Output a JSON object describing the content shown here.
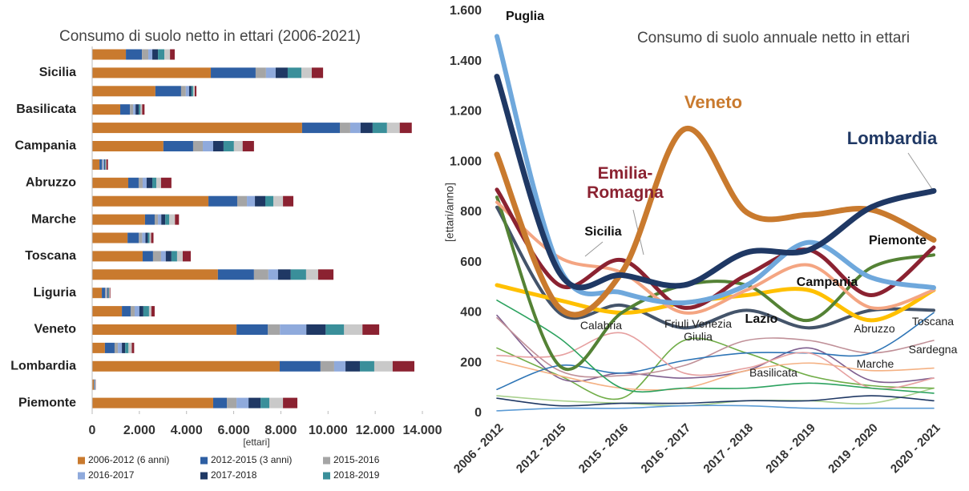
{
  "chart_data": [
    {
      "type": "bar",
      "horizontal": true,
      "title": "Consumo di suolo netto in ettari (2006-2021)",
      "x_label": "[ettari]",
      "categories": [
        null,
        "Sicilia",
        null,
        "Basilicata",
        null,
        "Campania",
        null,
        "Abruzzo",
        null,
        "Marche",
        null,
        "Toscana",
        null,
        "Liguria",
        null,
        "Veneto",
        null,
        "Lombardia",
        null,
        "Piemonte"
      ],
      "xlim": [
        0,
        14000
      ],
      "xticks": [
        0,
        {
          "value": 2000,
          "label": "2.000"
        },
        {
          "value": 4000,
          "label": "4.000"
        },
        {
          "value": 6000,
          "label": "6.000"
        },
        {
          "value": 8000,
          "label": "8.000"
        },
        {
          "value": 10000,
          "label": "10.000"
        },
        {
          "value": 12000,
          "label": "12.000"
        },
        {
          "value": 14000,
          "label": "14.000"
        }
      ],
      "series": [
        {
          "name": "2006-2012 (6 anni)",
          "color": "#c97a2e",
          "values": [
            1430,
            5030,
            2680,
            1190,
            8900,
            3020,
            310,
            1530,
            4930,
            2240,
            1500,
            2140,
            5330,
            410,
            1260,
            6120,
            540,
            7950,
            70,
            5130
          ]
        },
        {
          "name": "2012-2015 (3 anni)",
          "color": "#2e5fa3",
          "values": [
            680,
            1900,
            1090,
            410,
            1600,
            1260,
            100,
            440,
            1220,
            410,
            480,
            440,
            1530,
            140,
            370,
            1330,
            410,
            1730,
            20,
            580
          ]
        },
        {
          "name": "2015-2016",
          "color": "#a5a5a5",
          "values": [
            270,
            440,
            200,
            140,
            440,
            410,
            30,
            170,
            410,
            140,
            140,
            340,
            610,
            70,
            170,
            510,
            140,
            580,
            10,
            410
          ]
        },
        {
          "name": "2016-2017",
          "color": "#8faadc",
          "values": [
            170,
            410,
            140,
            100,
            440,
            440,
            70,
            170,
            340,
            140,
            140,
            200,
            410,
            30,
            200,
            1120,
            170,
            480,
            10,
            510
          ]
        },
        {
          "name": "2017-2018",
          "color": "#1f3864",
          "values": [
            240,
            510,
            100,
            140,
            510,
            440,
            30,
            240,
            440,
            170,
            100,
            240,
            540,
            30,
            170,
            820,
            140,
            610,
            10,
            510
          ]
        },
        {
          "name": "2018-2019",
          "color": "#3a8f9a",
          "values": [
            270,
            580,
            70,
            70,
            610,
            440,
            30,
            170,
            340,
            170,
            70,
            240,
            650,
            30,
            240,
            780,
            140,
            610,
            10,
            370
          ]
        },
        {
          "name": null,
          "color": "#c9c9c9",
          "values": [
            240,
            440,
            70,
            70,
            540,
            370,
            30,
            200,
            410,
            240,
            70,
            240,
            510,
            30,
            100,
            780,
            140,
            780,
            10,
            580
          ]
        },
        {
          "name": null,
          "color": "#8b2231",
          "values": [
            200,
            480,
            70,
            100,
            510,
            480,
            70,
            440,
            440,
            170,
            100,
            340,
            650,
            30,
            140,
            710,
            100,
            920,
            10,
            610
          ]
        }
      ]
    },
    {
      "type": "line",
      "title": "Consumo di suolo annuale netto in ettari",
      "y_label": "[ettari/anno]",
      "categories": [
        "2006 - 2012",
        "2012 - 2015",
        "2015 - 2016",
        "2016 - 2017",
        "2017 - 2018",
        "2018 - 2019",
        "2019 - 2020",
        "2020 - 2021"
      ],
      "ylim": [
        0,
        1600
      ],
      "yticks": [
        0,
        200,
        400,
        600,
        800,
        {
          "value": 1000,
          "label": "1.000"
        },
        {
          "value": 1200,
          "label": "1.200"
        },
        {
          "value": 1400,
          "label": "1.400"
        },
        {
          "value": 1600,
          "label": "1.600"
        }
      ],
      "series": [
        {
          "name": "Lombardia",
          "color": "#1f3864",
          "values": [
            1340,
            560,
            550,
            510,
            640,
            650,
            820,
            885
          ]
        },
        {
          "name": "Veneto",
          "color": "#c97a2e",
          "values": [
            1030,
            420,
            560,
            1130,
            800,
            790,
            810,
            690
          ]
        },
        {
          "name": "Puglia",
          "color": "#6fa8dc",
          "values": [
            1500,
            580,
            480,
            440,
            510,
            680,
            540,
            500
          ]
        },
        {
          "name": "Emilia-Romagna",
          "color": "#8b2231",
          "values": [
            890,
            510,
            610,
            420,
            550,
            650,
            470,
            660
          ]
        },
        {
          "name": "Sicilia",
          "color": "#f4a582",
          "values": [
            840,
            620,
            560,
            400,
            490,
            590,
            420,
            490
          ]
        },
        {
          "name": "Piemonte",
          "color": "#548235",
          "values": [
            860,
            190,
            400,
            510,
            510,
            370,
            580,
            630
          ]
        },
        {
          "name": "Campania",
          "color": "#ffc000",
          "values": [
            510,
            450,
            400,
            440,
            470,
            490,
            370,
            490
          ]
        },
        {
          "name": "Lazio",
          "color": "#44546a",
          "values": [
            820,
            400,
            430,
            340,
            410,
            340,
            410,
            410
          ]
        },
        {
          "name": "Calabria",
          "color": "#2ca25f",
          "values": [
            450,
            300,
            100,
            100,
            100,
            120,
            100,
            80
          ]
        },
        {
          "name": "Friuli Venezia Giulia",
          "color": "#e6a0a0",
          "values": [
            230,
            230,
            320,
            160,
            180,
            240,
            100,
            140
          ]
        },
        {
          "name": "Toscana",
          "color": "#2e75b6",
          "values": [
            95,
            190,
            160,
            210,
            240,
            240,
            240,
            400
          ]
        },
        {
          "name": "Sardegna",
          "color": "#c09098",
          "values": [
            380,
            170,
            150,
            190,
            290,
            290,
            240,
            290
          ]
        },
        {
          "name": "Abruzzo",
          "color": "#f4b183",
          "values": [
            210,
            150,
            100,
            100,
            170,
            200,
            170,
            180
          ]
        },
        {
          "name": "Marche",
          "color": "#7f5f8f",
          "values": [
            390,
            140,
            160,
            140,
            170,
            260,
            130,
            140
          ]
        },
        {
          "name": "Basilicata",
          "color": "#70ad47",
          "values": [
            260,
            150,
            60,
            290,
            240,
            150,
            110,
            100
          ]
        },
        {
          "name": null,
          "color": "#1f3864",
          "values": [
            60,
            30,
            40,
            40,
            50,
            50,
            70,
            50
          ]
        },
        {
          "name": null,
          "color": "#5b9bd5",
          "values": [
            10,
            20,
            20,
            30,
            30,
            20,
            20,
            20
          ]
        },
        {
          "name": null,
          "color": "#a9d18e",
          "values": [
            70,
            50,
            40,
            30,
            50,
            50,
            40,
            100
          ]
        }
      ]
    }
  ]
}
